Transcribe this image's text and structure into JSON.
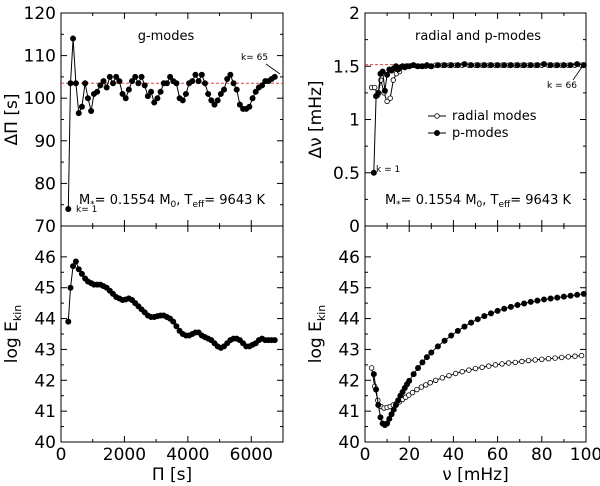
{
  "chart_data": [
    {
      "type": "scatter",
      "panel": "top-left",
      "annotation_title": "g-modes",
      "annotation_params": "M*= 0.1554 M0, Teff= 9643 K",
      "annotation_params_parts": {
        "mass_lead": "M",
        "mass_sub": "*",
        "mass_mid": "= 0.1554 M",
        "mass_unit_sub": "0",
        "teff_lead": ", T",
        "teff_sub": "eff",
        "teff_tail": "= 9643 K"
      },
      "labels": {
        "k1": "k= 1",
        "k65": "k= 65"
      },
      "ylabel": "ΔΠ [s]",
      "xlabel": "",
      "xlim": [
        0,
        7000
      ],
      "ylim": [
        70,
        120
      ],
      "xticks": [
        0,
        2000,
        4000,
        6000
      ],
      "yticks": [
        70,
        80,
        90,
        100,
        110,
        120
      ],
      "ytick_labels": [
        "70",
        "80",
        "90",
        "100",
        "110",
        "120"
      ],
      "grid": false,
      "reference_line": {
        "y": 103.5,
        "color": "#e0463a",
        "style": "dashed"
      },
      "series": [
        {
          "marker": "filled",
          "x": [
            230,
            300,
            380,
            470,
            560,
            660,
            760,
            850,
            950,
            1040,
            1140,
            1240,
            1340,
            1440,
            1540,
            1640,
            1740,
            1840,
            1940,
            2040,
            2140,
            2240,
            2340,
            2440,
            2540,
            2640,
            2740,
            2840,
            2940,
            3040,
            3140,
            3240,
            3340,
            3440,
            3540,
            3640,
            3740,
            3840,
            3940,
            4040,
            4140,
            4240,
            4340,
            4440,
            4540,
            4640,
            4740,
            4840,
            4940,
            5040,
            5140,
            5240,
            5340,
            5440,
            5540,
            5640,
            5740,
            5840,
            5940,
            6040,
            6140,
            6240,
            6340,
            6440,
            6540,
            6640,
            6740
          ],
          "y": [
            74,
            103.5,
            114,
            103.5,
            96.5,
            98,
            103.5,
            100,
            97,
            101,
            101.5,
            103,
            104,
            102.5,
            105,
            103.5,
            105,
            104,
            101,
            100,
            102,
            104,
            105,
            103.5,
            105,
            103,
            100.5,
            101.5,
            99,
            100,
            101.5,
            103.5,
            103.5,
            105,
            104,
            103.5,
            100,
            99.5,
            101,
            103.5,
            104,
            105.5,
            104,
            105.5,
            103.5,
            101,
            99.5,
            98.5,
            99.5,
            101,
            102,
            104.5,
            105.5,
            103.5,
            102,
            98.5,
            97.5,
            97.5,
            98,
            100,
            101.5,
            102.5,
            103,
            104,
            104,
            104.5,
            105
          ]
        }
      ]
    },
    {
      "type": "line",
      "panel": "top-right",
      "annotation_title": "radial and p-modes",
      "annotation_params": "M*= 0.1554 M0, Teff= 9643 K",
      "annotation_params_parts": {
        "mass_lead": "M",
        "mass_sub": "*",
        "mass_mid": "= 0.1554 M",
        "mass_unit_sub": "0",
        "teff_lead": ", T",
        "teff_sub": "eff",
        "teff_tail": "= 9643 K"
      },
      "labels": {
        "k1": "k = 1",
        "k66": "k = 66"
      },
      "ylabel": "Δν [mHz]",
      "xlabel": "",
      "xlim": [
        0,
        100
      ],
      "ylim": [
        0,
        2
      ],
      "xticks": [
        0,
        20,
        40,
        60,
        80,
        100
      ],
      "yticks": [
        0,
        0.5,
        1,
        1.5,
        2
      ],
      "ytick_labels": [
        "0",
        "0.5",
        "1",
        "1.5",
        "2"
      ],
      "legend": {
        "position": "center-right",
        "entries": [
          "radial modes",
          "p-modes"
        ]
      },
      "grid": false,
      "reference_line": {
        "y": 1.515,
        "color": "#e0463a",
        "style": "dashed"
      },
      "series": [
        {
          "name": "radial modes",
          "marker": "open",
          "x": [
            3,
            4.4,
            5.8,
            7.2,
            8.6,
            10,
            11.4,
            12.8,
            14.2,
            15.6,
            17,
            18.4,
            19.8,
            21.5,
            23.5,
            25.5,
            27.5,
            29.5,
            32,
            35,
            38,
            41,
            44,
            47,
            50,
            53,
            56,
            59,
            62,
            65,
            68,
            71,
            74,
            77,
            80,
            83,
            86,
            89,
            92,
            95,
            98
          ],
          "y": [
            1.3,
            1.3,
            1.23,
            1.37,
            1.25,
            1.17,
            1.2,
            1.37,
            1.43,
            1.45,
            1.5,
            1.5,
            1.5,
            1.51,
            1.5,
            1.5,
            1.5,
            1.5,
            1.51,
            1.51,
            1.51,
            1.51,
            1.51,
            1.51,
            1.51,
            1.51,
            1.51,
            1.51,
            1.51,
            1.51,
            1.51,
            1.51,
            1.51,
            1.51,
            1.51,
            1.51,
            1.51,
            1.51,
            1.51,
            1.51,
            1.51
          ]
        },
        {
          "name": "p-modes",
          "marker": "filled",
          "x": [
            4,
            5,
            6,
            7,
            8,
            9,
            10,
            11,
            12,
            13,
            14,
            15,
            16,
            17,
            18,
            19,
            20,
            22,
            24,
            26,
            28,
            30,
            33,
            36,
            39,
            42,
            45,
            48,
            51,
            54,
            57,
            60,
            63,
            66,
            69,
            72,
            75,
            78,
            81,
            84,
            87,
            90,
            93,
            96,
            99
          ],
          "y": [
            0.5,
            1.22,
            1.25,
            1.43,
            1.45,
            1.27,
            1.42,
            1.47,
            1.46,
            1.48,
            1.5,
            1.47,
            1.49,
            1.5,
            1.49,
            1.5,
            1.5,
            1.51,
            1.5,
            1.5,
            1.51,
            1.5,
            1.51,
            1.51,
            1.51,
            1.51,
            1.52,
            1.51,
            1.51,
            1.51,
            1.51,
            1.51,
            1.51,
            1.51,
            1.51,
            1.51,
            1.51,
            1.51,
            1.52,
            1.51,
            1.51,
            1.51,
            1.51,
            1.52,
            1.51
          ]
        }
      ]
    },
    {
      "type": "line",
      "panel": "bottom-left",
      "ylabel": "log E",
      "ylabel_sub": "kin",
      "xlabel": "Π [s]",
      "xlim": [
        0,
        7000
      ],
      "ylim": [
        40,
        47
      ],
      "xticks": [
        0,
        2000,
        4000,
        6000
      ],
      "xtick_labels": [
        "0",
        "2000",
        "4000",
        "6000"
      ],
      "yticks": [
        40,
        41,
        42,
        43,
        44,
        45,
        46
      ],
      "ytick_labels": [
        "40",
        "41",
        "42",
        "43",
        "44",
        "45",
        "46"
      ],
      "grid": false,
      "series": [
        {
          "marker": "filled",
          "x": [
            230,
            300,
            380,
            470,
            560,
            660,
            760,
            850,
            950,
            1040,
            1140,
            1240,
            1340,
            1440,
            1540,
            1640,
            1740,
            1840,
            1940,
            2040,
            2140,
            2240,
            2340,
            2440,
            2540,
            2640,
            2740,
            2840,
            2940,
            3040,
            3140,
            3240,
            3340,
            3440,
            3540,
            3640,
            3740,
            3840,
            3940,
            4040,
            4140,
            4240,
            4340,
            4440,
            4540,
            4640,
            4740,
            4840,
            4940,
            5040,
            5140,
            5240,
            5340,
            5440,
            5540,
            5640,
            5740,
            5840,
            5940,
            6040,
            6140,
            6240,
            6340,
            6440,
            6540,
            6640,
            6740
          ],
          "y": [
            43.9,
            45.0,
            45.7,
            45.85,
            45.6,
            45.45,
            45.3,
            45.2,
            45.15,
            45.1,
            45.1,
            45.1,
            45.05,
            45.0,
            44.9,
            44.8,
            44.7,
            44.65,
            44.6,
            44.62,
            44.65,
            44.6,
            44.5,
            44.4,
            44.3,
            44.2,
            44.1,
            44.05,
            44.05,
            44.08,
            44.1,
            44.1,
            44.05,
            44.0,
            43.9,
            43.75,
            43.6,
            43.5,
            43.45,
            43.45,
            43.5,
            43.55,
            43.55,
            43.45,
            43.4,
            43.35,
            43.3,
            43.2,
            43.1,
            43.05,
            43.1,
            43.2,
            43.3,
            43.35,
            43.35,
            43.3,
            43.2,
            43.1,
            43.1,
            43.15,
            43.2,
            43.3,
            43.35,
            43.3,
            43.3,
            43.3,
            43.3
          ]
        }
      ]
    },
    {
      "type": "line",
      "panel": "bottom-right",
      "ylabel": "log E",
      "ylabel_sub": "kin",
      "xlabel": "ν [mHz]",
      "xlim": [
        0,
        100
      ],
      "ylim": [
        40,
        47
      ],
      "xticks": [
        0,
        20,
        40,
        60,
        80,
        100
      ],
      "xtick_labels": [
        "0",
        "20",
        "40",
        "60",
        "80",
        "100"
      ],
      "yticks": [
        40,
        41,
        42,
        43,
        44,
        45,
        46
      ],
      "ytick_labels": [
        "40",
        "41",
        "42",
        "43",
        "44",
        "45",
        "46"
      ],
      "grid": false,
      "series": [
        {
          "name": "radial modes",
          "marker": "open",
          "x": [
            3,
            4.4,
            5.8,
            7.2,
            8.6,
            10,
            11.4,
            12.8,
            14.2,
            15.6,
            17,
            18.4,
            19.8,
            21.5,
            23.5,
            25.5,
            27.5,
            29.5,
            32,
            35,
            38,
            41,
            44,
            47,
            50,
            53,
            56,
            59,
            62,
            65,
            68,
            71,
            74,
            77,
            80,
            83,
            86,
            89,
            92,
            95,
            98
          ],
          "y": [
            42.4,
            41.8,
            41.35,
            41.15,
            41.1,
            41.12,
            41.15,
            41.2,
            41.25,
            41.3,
            41.38,
            41.45,
            41.52,
            41.6,
            41.7,
            41.78,
            41.85,
            41.92,
            42.0,
            42.08,
            42.15,
            42.22,
            42.28,
            42.33,
            42.38,
            42.42,
            42.46,
            42.5,
            42.53,
            42.56,
            42.58,
            42.61,
            42.64,
            42.66,
            42.68,
            42.7,
            42.72,
            42.74,
            42.76,
            42.78,
            42.8
          ]
        },
        {
          "name": "p-modes",
          "marker": "filled",
          "x": [
            4,
            5,
            6,
            7,
            8,
            9,
            10,
            11,
            12,
            13,
            14,
            15,
            16,
            17,
            18,
            19,
            20,
            22,
            24,
            26,
            28,
            30,
            33,
            36,
            39,
            42,
            45,
            48,
            51,
            54,
            57,
            60,
            63,
            66,
            69,
            72,
            75,
            78,
            81,
            84,
            87,
            90,
            93,
            96,
            99
          ],
          "y": [
            42.2,
            41.7,
            41.2,
            40.8,
            40.6,
            40.55,
            40.6,
            40.75,
            40.9,
            41.05,
            41.2,
            41.35,
            41.5,
            41.62,
            41.75,
            41.87,
            41.98,
            42.2,
            42.4,
            42.58,
            42.75,
            42.9,
            43.1,
            43.28,
            43.45,
            43.6,
            43.74,
            43.87,
            43.98,
            44.08,
            44.17,
            44.25,
            44.32,
            44.38,
            44.44,
            44.49,
            44.54,
            44.58,
            44.62,
            44.65,
            44.68,
            44.71,
            44.74,
            44.77,
            44.8
          ]
        }
      ]
    }
  ]
}
